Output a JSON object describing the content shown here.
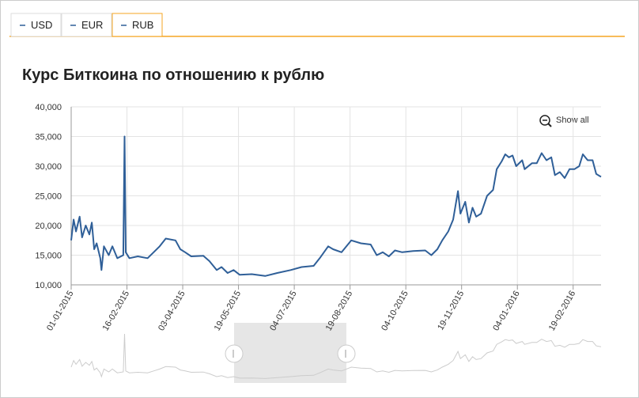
{
  "tabs": [
    "USD",
    "EUR",
    "RUB"
  ],
  "active_tab": 2,
  "show_all": "Show all",
  "chart_data": {
    "type": "line",
    "title": "Курс Биткоина по отношению к рублю",
    "x": [
      "01-01-2015",
      "03-01-2015",
      "05-01-2015",
      "08-01-2015",
      "10-01-2015",
      "13-01-2015",
      "16-01-2015",
      "18-01-2015",
      "20-01-2015",
      "22-01-2015",
      "25-01-2015",
      "26-01-2015",
      "28-01-2015",
      "01-02-2015",
      "04-02-2015",
      "08-02-2015",
      "13-02-2015",
      "14-02-2015",
      "15-02-2015",
      "18-02-2015",
      "25-02-2015",
      "05-03-2015",
      "10-03-2015",
      "15-03-2015",
      "20-03-2015",
      "28-03-2015",
      "01-04-2015",
      "05-04-2015",
      "10-04-2015",
      "20-04-2015",
      "25-04-2015",
      "01-05-2015",
      "05-05-2015",
      "10-05-2015",
      "15-05-2015",
      "20-05-2015",
      "30-05-2015",
      "10-06-2015",
      "20-06-2015",
      "01-07-2015",
      "10-07-2015",
      "20-07-2015",
      "25-07-2015",
      "01-08-2015",
      "05-08-2015",
      "12-08-2015",
      "20-08-2015",
      "28-08-2015",
      "05-09-2015",
      "10-09-2015",
      "15-09-2015",
      "20-09-2015",
      "25-09-2015",
      "01-10-2015",
      "10-10-2015",
      "20-10-2015",
      "25-10-2015",
      "30-10-2015",
      "03-11-2015",
      "08-11-2015",
      "12-11-2015",
      "16-11-2015",
      "18-11-2015",
      "22-11-2015",
      "25-11-2015",
      "28-11-2015",
      "01-12-2015",
      "05-12-2015",
      "10-12-2015",
      "15-12-2015",
      "18-12-2015",
      "22-12-2015",
      "25-12-2015",
      "28-12-2015",
      "31-12-2015",
      "03-01-2016",
      "08-01-2016",
      "10-01-2016",
      "16-01-2016",
      "20-01-2016",
      "24-01-2016",
      "28-01-2016",
      "01-02-2016",
      "04-02-2016",
      "08-02-2016",
      "12-02-2016",
      "16-02-2016",
      "20-02-2016",
      "24-02-2016",
      "27-02-2016",
      "02-03-2016",
      "06-03-2016",
      "09-03-2016",
      "13-03-2016"
    ],
    "series": [
      {
        "color": "#2f5f98",
        "values": [
          17500,
          21000,
          19000,
          21500,
          18000,
          20000,
          18500,
          20500,
          16000,
          17000,
          14500,
          12500,
          16500,
          15000,
          16500,
          14500,
          15000,
          35000,
          15500,
          14500,
          14800,
          14500,
          15500,
          16500,
          17800,
          17500,
          16000,
          15500,
          14800,
          14900,
          14000,
          12500,
          13000,
          12000,
          12500,
          11700,
          11800,
          11500,
          12000,
          12500,
          13000,
          13200,
          14500,
          16500,
          16000,
          15500,
          17500,
          17000,
          16800,
          15000,
          15500,
          14800,
          15800,
          15500,
          15700,
          15800,
          15000,
          16000,
          17500,
          19000,
          21000,
          25800,
          22000,
          24000,
          20500,
          23000,
          21500,
          22000,
          25000,
          26000,
          29500,
          30800,
          32000,
          31500,
          31800,
          30000,
          31000,
          29500,
          30500,
          30500,
          32200,
          31000,
          31500,
          28500,
          29000,
          28000,
          29500,
          29500,
          30000,
          32000,
          31000,
          31000,
          28700,
          28200
        ]
      }
    ],
    "xlim": [
      "01-01-2015",
      "13-03-2016"
    ],
    "xticks": [
      "01-01-2015",
      "16-02-2015",
      "03-04-2015",
      "19-05-2015",
      "04-07-2015",
      "19-08-2015",
      "04-10-2015",
      "19-11-2015",
      "04-01-2016",
      "19-02-2016"
    ],
    "ylim": [
      10000,
      40000
    ],
    "yticks": [
      {
        "value": 10000,
        "label": "10,000"
      },
      {
        "value": 15000,
        "label": "15,000"
      },
      {
        "value": 20000,
        "label": "20,000"
      },
      {
        "value": 25000,
        "label": "25,000"
      },
      {
        "value": 30000,
        "label": "30,000"
      },
      {
        "value": 35000,
        "label": "35,000"
      },
      {
        "value": 40000,
        "label": "40,000"
      }
    ],
    "grid": true
  }
}
